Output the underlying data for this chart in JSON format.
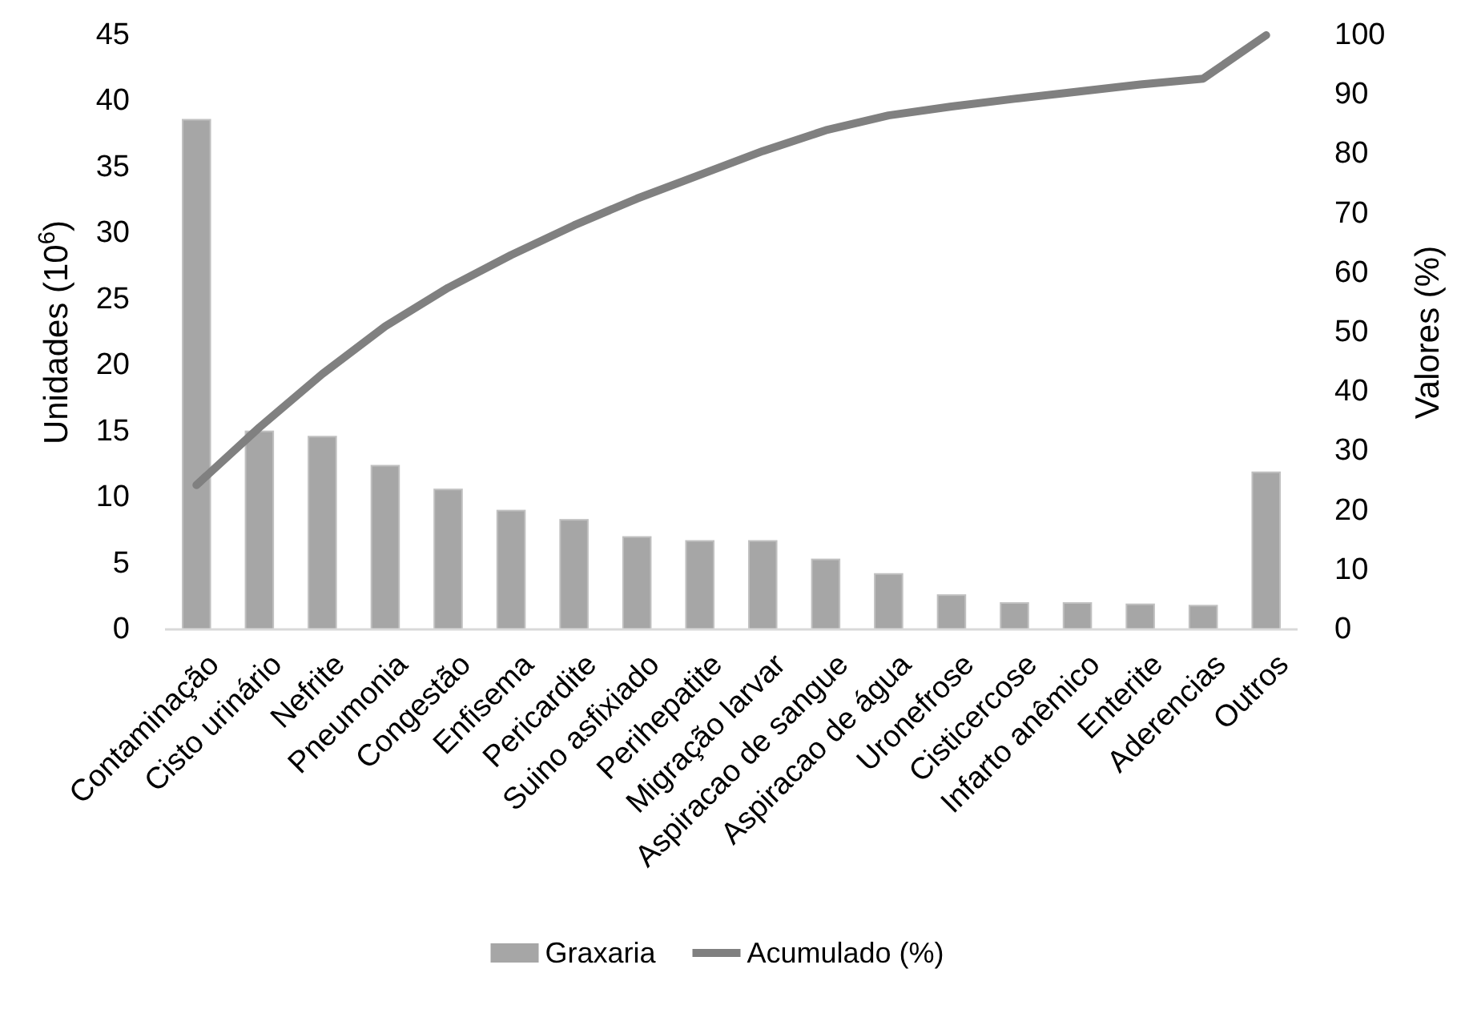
{
  "chart_data": {
    "type": "bar",
    "ylabel": "Unidades (10$^{6}$)",
    "y2label": "Valores (%)",
    "categories": [
      "Contaminação",
      "Cisto urinário",
      "Nefrite",
      "Pneumonia",
      "Congestão",
      "Enfisema",
      "Pericardite",
      "Suino asfixiado",
      "Perihepatite",
      "Migração larvar",
      "Aspiracao de sangue",
      "Aspiracao de água",
      "Uronefrose",
      "Cisticercose",
      "Infarto anêmico",
      "Enterite",
      "Aderencias",
      "Outros"
    ],
    "series": [
      {
        "name": "Graxaria",
        "color": "#a6a6a6",
        "values": [
          38.6,
          15.0,
          14.6,
          12.4,
          10.6,
          9.0,
          8.3,
          7.0,
          6.7,
          6.7,
          5.3,
          4.2,
          2.6,
          2.0,
          2.0,
          1.9,
          1.8,
          11.9
        ]
      },
      {
        "name": "Acumulado (%)",
        "type": "line",
        "axis": "y2",
        "color": "#808080",
        "values": [
          24.3,
          34,
          43,
          51,
          57.5,
          63,
          68,
          72.5,
          76.5,
          80.5,
          84,
          86.5,
          88,
          89.3,
          90.5,
          91.7,
          92.7,
          100
        ]
      }
    ],
    "ylim": [
      0,
      45
    ],
    "yticks": [
      0,
      5,
      10,
      15,
      20,
      25,
      30,
      35,
      40,
      45
    ],
    "y2lim": [
      0,
      100
    ],
    "y2ticks": [
      0,
      10,
      20,
      30,
      40,
      50,
      60,
      70,
      80,
      90,
      100
    ],
    "grid": false,
    "legend": "bottom",
    "marker": "none",
    "line_style": "solid"
  }
}
